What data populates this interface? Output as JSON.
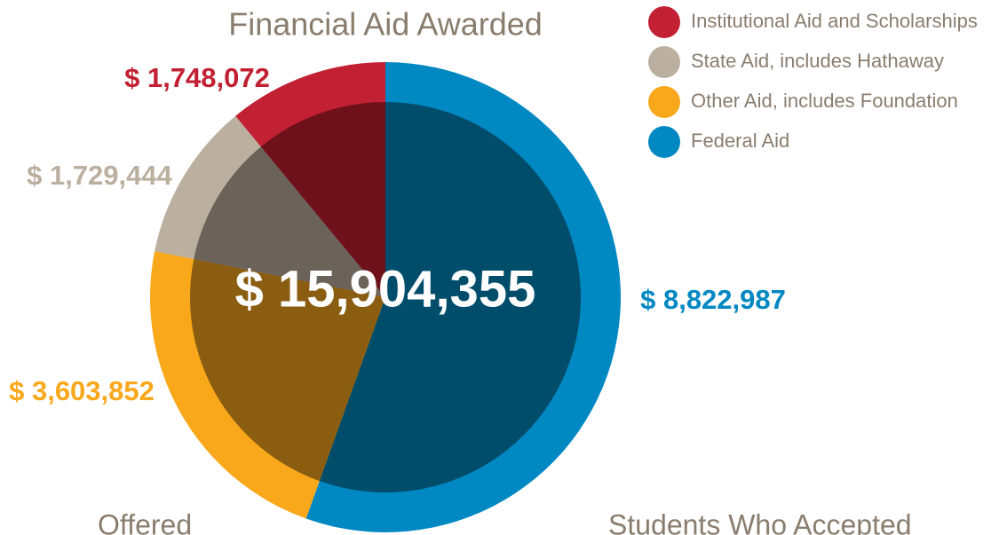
{
  "chart_data": {
    "type": "pie",
    "title": "Financial Aid Awarded",
    "categories": [
      "Institutional Aid and Scholarships",
      "State Aid, includes Hathaway",
      "Other Aid, includes Foundation",
      "Federal Aid"
    ],
    "values": [
      1748072,
      1729444,
      3603852,
      8822987
    ],
    "value_labels": [
      "$ 1,748,072",
      "$ 1,729,444",
      "$ 3,603,852",
      "$ 8,822,987"
    ],
    "colors": [
      "#c22033",
      "#bbaf9f",
      "#f9a81b",
      "#0088c2"
    ],
    "inner_colors": [
      "#6e111b",
      "#6b625a",
      "#8a5d10",
      "#004d6b"
    ],
    "center_label": "$ 15,904,355",
    "footer_texts": [
      "Offered",
      "Students Who Accepted"
    ]
  }
}
